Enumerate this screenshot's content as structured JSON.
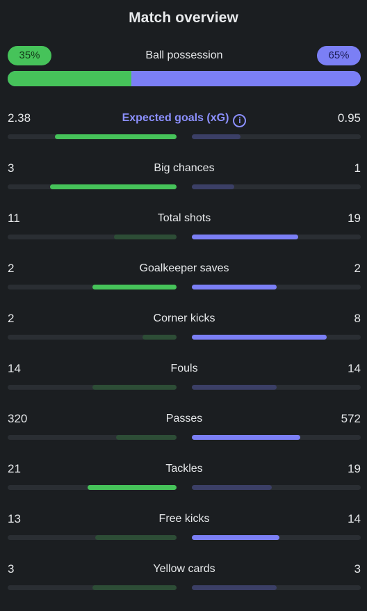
{
  "title": "Match overview",
  "possession": {
    "label": "Ball possession",
    "home": "35%",
    "away": "65%",
    "home_fraction": 0.35
  },
  "colors": {
    "home_strong": "#46c35a",
    "home_weak": "#2d4d36",
    "away_strong": "#7b7ff5",
    "away_weak": "#3b3f66",
    "track": "#2a2e33",
    "accent": "#8c90ff",
    "background": "#1b1e21"
  },
  "stats": [
    {
      "key": "xg",
      "label": "Expected goals (xG)",
      "home": "2.38",
      "away": "0.95",
      "home_ratio": 0.72,
      "away_ratio": 0.29,
      "home_strong": true,
      "away_strong": false,
      "accent": true,
      "info_icon": "info-icon"
    },
    {
      "key": "big-chances",
      "label": "Big chances",
      "home": "3",
      "away": "1",
      "home_ratio": 0.75,
      "away_ratio": 0.25,
      "home_strong": true,
      "away_strong": false
    },
    {
      "key": "total-shots",
      "label": "Total shots",
      "home": "11",
      "away": "19",
      "home_ratio": 0.37,
      "away_ratio": 0.63,
      "home_strong": false,
      "away_strong": true
    },
    {
      "key": "goalkeeper-saves",
      "label": "Goalkeeper saves",
      "home": "2",
      "away": "2",
      "home_ratio": 0.5,
      "away_ratio": 0.5,
      "home_strong": true,
      "away_strong": true
    },
    {
      "key": "corner-kicks",
      "label": "Corner kicks",
      "home": "2",
      "away": "8",
      "home_ratio": 0.2,
      "away_ratio": 0.8,
      "home_strong": false,
      "away_strong": true
    },
    {
      "key": "fouls",
      "label": "Fouls",
      "home": "14",
      "away": "14",
      "home_ratio": 0.5,
      "away_ratio": 0.5,
      "home_strong": false,
      "away_strong": false
    },
    {
      "key": "passes",
      "label": "Passes",
      "home": "320",
      "away": "572",
      "home_ratio": 0.36,
      "away_ratio": 0.64,
      "home_strong": false,
      "away_strong": true
    },
    {
      "key": "tackles",
      "label": "Tackles",
      "home": "21",
      "away": "19",
      "home_ratio": 0.525,
      "away_ratio": 0.475,
      "home_strong": true,
      "away_strong": false
    },
    {
      "key": "free-kicks",
      "label": "Free kicks",
      "home": "13",
      "away": "14",
      "home_ratio": 0.48,
      "away_ratio": 0.52,
      "home_strong": false,
      "away_strong": true
    },
    {
      "key": "yellow-cards",
      "label": "Yellow cards",
      "home": "3",
      "away": "3",
      "home_ratio": 0.5,
      "away_ratio": 0.5,
      "home_strong": false,
      "away_strong": false
    }
  ]
}
